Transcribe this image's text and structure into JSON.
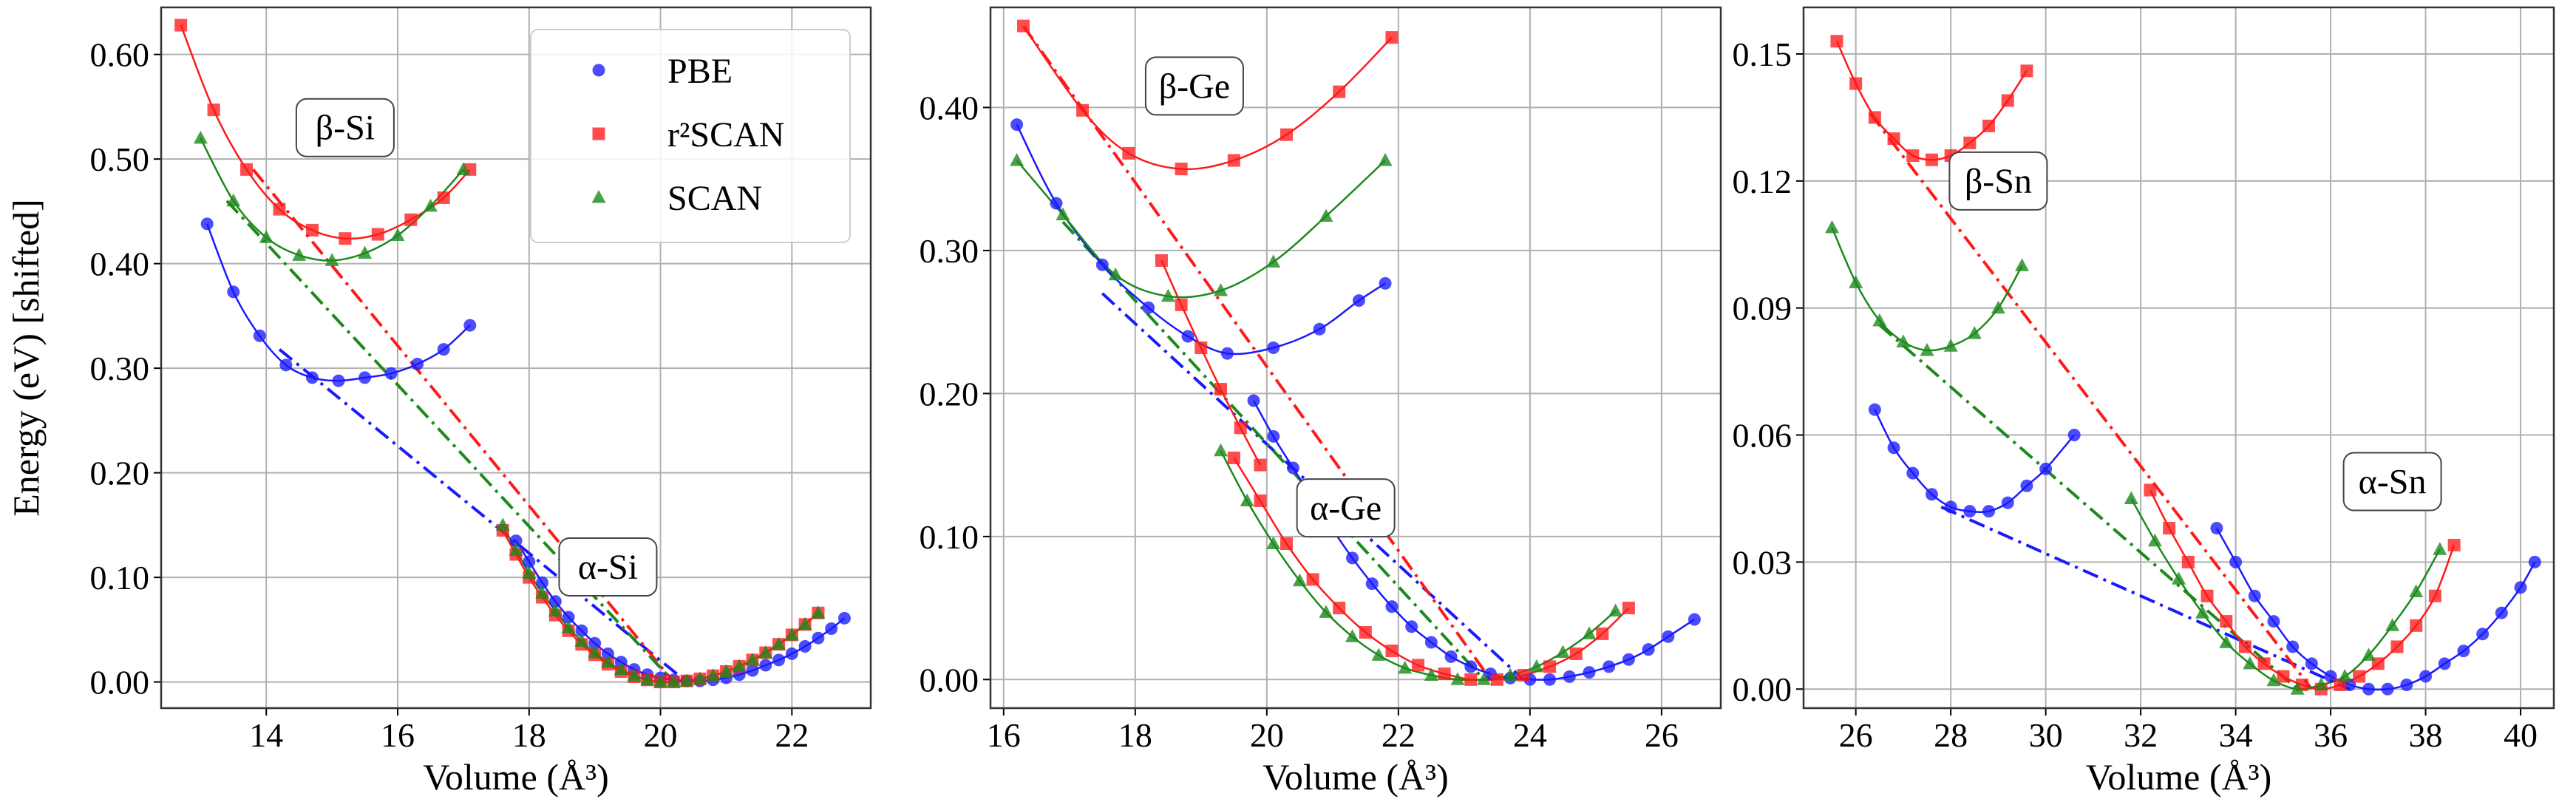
{
  "colors": {
    "PBE": "#1a1aff",
    "r2SCAN": "#ff1a1a",
    "SCAN": "#1a8a1a"
  },
  "legend": {
    "location": "upper-right of first panel",
    "entries": [
      {
        "key": "PBE",
        "label": "PBE",
        "marker": "circle"
      },
      {
        "key": "r2SCAN",
        "label": "r²SCAN",
        "marker": "square"
      },
      {
        "key": "SCAN",
        "label": "SCAN",
        "marker": "triangle"
      }
    ]
  },
  "chart_data": [
    {
      "type": "scatter",
      "panel": "Si",
      "xlabel": "Volume (Å³)",
      "ylabel": "Energy (eV) [shifted]",
      "xlim": [
        12.4,
        23.2
      ],
      "ylim": [
        -0.025,
        0.645
      ],
      "xticks": [
        14,
        16,
        18,
        20,
        22
      ],
      "xticklabels": [
        "14",
        "16",
        "18",
        "20",
        "22"
      ],
      "yticks": [
        0,
        0.1,
        0.2,
        0.3,
        0.4,
        0.5,
        0.6
      ],
      "yticklabels": [
        "0.00",
        "0.10",
        "0.20",
        "0.30",
        "0.40",
        "0.50",
        "0.60"
      ],
      "annotations": [
        {
          "text": "β-Si",
          "x": 15.2,
          "y": 0.53
        },
        {
          "text": "α-Si",
          "x": 19.2,
          "y": 0.11
        }
      ],
      "series": [
        {
          "name": "PBE",
          "phase": "α",
          "x": [
            17.8,
            18.0,
            18.2,
            18.4,
            18.6,
            18.8,
            19.0,
            19.2,
            19.4,
            19.6,
            19.8,
            20.0,
            20.2,
            20.4,
            20.6,
            20.8,
            21.0,
            21.2,
            21.4,
            21.6,
            21.8,
            22.0,
            22.2,
            22.4,
            22.6,
            22.8
          ],
          "y": [
            0.135,
            0.115,
            0.095,
            0.077,
            0.062,
            0.049,
            0.037,
            0.027,
            0.019,
            0.012,
            0.007,
            0.004,
            0.002,
            0.001,
            0.001,
            0.002,
            0.004,
            0.007,
            0.011,
            0.016,
            0.021,
            0.027,
            0.034,
            0.042,
            0.051,
            0.061
          ]
        },
        {
          "name": "PBE",
          "phase": "β",
          "x": [
            13.1,
            13.5,
            13.9,
            14.3,
            14.7,
            15.1,
            15.5,
            15.9,
            16.3,
            16.7,
            17.1
          ],
          "y": [
            0.438,
            0.373,
            0.331,
            0.303,
            0.291,
            0.288,
            0.291,
            0.295,
            0.304,
            0.318,
            0.341
          ]
        },
        {
          "name": "r2SCAN",
          "phase": "α",
          "x": [
            17.6,
            17.8,
            18.0,
            18.2,
            18.4,
            18.6,
            18.8,
            19.0,
            19.2,
            19.4,
            19.6,
            19.8,
            20.0,
            20.2,
            20.4,
            20.6,
            20.8,
            21.0,
            21.2,
            21.4,
            21.6,
            21.8,
            22.0,
            22.2,
            22.4
          ],
          "y": [
            0.145,
            0.122,
            0.1,
            0.081,
            0.064,
            0.049,
            0.036,
            0.026,
            0.017,
            0.01,
            0.005,
            0.002,
            0.0,
            0.0,
            0.001,
            0.003,
            0.006,
            0.01,
            0.015,
            0.021,
            0.028,
            0.036,
            0.045,
            0.055,
            0.066
          ]
        },
        {
          "name": "r2SCAN",
          "phase": "β",
          "x": [
            12.7,
            13.2,
            13.7,
            14.2,
            14.7,
            15.2,
            15.7,
            16.2,
            16.7,
            17.1
          ],
          "y": [
            0.628,
            0.547,
            0.49,
            0.452,
            0.432,
            0.424,
            0.428,
            0.442,
            0.463,
            0.49
          ]
        },
        {
          "name": "SCAN",
          "phase": "α",
          "x": [
            17.6,
            17.8,
            18.0,
            18.2,
            18.4,
            18.6,
            18.8,
            19.0,
            19.2,
            19.4,
            19.6,
            19.8,
            20.0,
            20.2,
            20.4,
            20.6,
            20.8,
            21.0,
            21.2,
            21.4,
            21.6,
            21.8,
            22.0,
            22.2,
            22.4
          ],
          "y": [
            0.15,
            0.126,
            0.104,
            0.085,
            0.068,
            0.052,
            0.039,
            0.028,
            0.019,
            0.012,
            0.006,
            0.002,
            0.0,
            0.0,
            0.001,
            0.003,
            0.006,
            0.01,
            0.015,
            0.021,
            0.028,
            0.036,
            0.045,
            0.055,
            0.066
          ]
        },
        {
          "name": "SCAN",
          "phase": "β",
          "x": [
            13.0,
            13.5,
            14.0,
            14.5,
            15.0,
            15.5,
            16.0,
            16.5,
            17.0
          ],
          "y": [
            0.52,
            0.46,
            0.425,
            0.408,
            0.403,
            0.41,
            0.427,
            0.455,
            0.49
          ]
        }
      ],
      "tangents": [
        {
          "name": "PBE",
          "x": [
            14.2,
            20.4
          ],
          "y": [
            0.318,
            0.0
          ]
        },
        {
          "name": "r2SCAN",
          "x": [
            13.8,
            20.2
          ],
          "y": [
            0.49,
            0.0
          ]
        },
        {
          "name": "SCAN",
          "x": [
            13.4,
            20.2
          ],
          "y": [
            0.46,
            0.0
          ]
        }
      ]
    },
    {
      "type": "scatter",
      "panel": "Ge",
      "xlabel": "Volume (Å³)",
      "ylabel": "",
      "xlim": [
        15.8,
        26.9
      ],
      "ylim": [
        -0.02,
        0.47
      ],
      "xticks": [
        16,
        18,
        20,
        22,
        24,
        26
      ],
      "xticklabels": [
        "16",
        "18",
        "20",
        "22",
        "24",
        "26"
      ],
      "yticks": [
        0,
        0.1,
        0.2,
        0.3,
        0.4
      ],
      "yticklabels": [
        "0.00",
        "0.10",
        "0.20",
        "0.30",
        "0.40"
      ],
      "annotations": [
        {
          "text": "β-Ge",
          "x": 18.9,
          "y": 0.415
        },
        {
          "text": "α-Ge",
          "x": 21.2,
          "y": 0.12
        }
      ],
      "series": [
        {
          "name": "PBE",
          "phase": "α",
          "x": [
            19.8,
            20.1,
            20.4,
            20.7,
            21.0,
            21.3,
            21.6,
            21.9,
            22.2,
            22.5,
            22.8,
            23.1,
            23.4,
            23.7,
            24.0,
            24.3,
            24.6,
            24.9,
            25.2,
            25.5,
            25.8,
            26.1,
            26.5
          ],
          "y": [
            0.195,
            0.17,
            0.148,
            0.126,
            0.105,
            0.085,
            0.067,
            0.051,
            0.037,
            0.026,
            0.016,
            0.009,
            0.004,
            0.001,
            0.0,
            0.0,
            0.002,
            0.005,
            0.009,
            0.014,
            0.021,
            0.03,
            0.042
          ]
        },
        {
          "name": "PBE",
          "phase": "β",
          "x": [
            16.2,
            16.8,
            17.5,
            18.2,
            18.8,
            19.4,
            20.1,
            20.8,
            21.4,
            21.8
          ],
          "y": [
            0.388,
            0.333,
            0.29,
            0.26,
            0.24,
            0.228,
            0.232,
            0.245,
            0.265,
            0.277
          ]
        },
        {
          "name": "r2SCAN",
          "phase": "α",
          "x": [
            19.5,
            19.9,
            20.3,
            20.7,
            21.1,
            21.5,
            21.9,
            22.3,
            22.7,
            23.1,
            23.5,
            23.9,
            24.3,
            24.7,
            25.1,
            25.5
          ],
          "y": [
            0.155,
            0.125,
            0.095,
            0.07,
            0.05,
            0.033,
            0.02,
            0.01,
            0.004,
            0.0,
            0.0,
            0.003,
            0.009,
            0.018,
            0.032,
            0.05
          ]
        },
        {
          "name": "r2SCAN",
          "phase": "β",
          "x": [
            16.3,
            17.2,
            17.9,
            18.7,
            19.5,
            20.3,
            21.1,
            21.9
          ],
          "y": [
            0.457,
            0.398,
            0.368,
            0.357,
            0.363,
            0.381,
            0.411,
            0.449
          ]
        },
        {
          "name": "r2SCAN",
          "phase": "β-compressed",
          "x": [
            18.4,
            18.7,
            19.0,
            19.3,
            19.6,
            19.9
          ],
          "y": [
            0.293,
            0.262,
            0.232,
            0.203,
            0.176,
            0.15
          ]
        },
        {
          "name": "SCAN",
          "phase": "α",
          "x": [
            19.3,
            19.7,
            20.1,
            20.5,
            20.9,
            21.3,
            21.7,
            22.1,
            22.5,
            22.9,
            23.3,
            23.7,
            24.1,
            24.5,
            24.9,
            25.3
          ],
          "y": [
            0.16,
            0.125,
            0.095,
            0.069,
            0.047,
            0.03,
            0.017,
            0.008,
            0.003,
            0.0,
            0.0,
            0.003,
            0.009,
            0.019,
            0.032,
            0.048
          ]
        },
        {
          "name": "SCAN",
          "phase": "β",
          "x": [
            16.2,
            16.9,
            17.7,
            18.5,
            19.3,
            20.1,
            20.9,
            21.8
          ],
          "y": [
            0.363,
            0.325,
            0.283,
            0.268,
            0.272,
            0.292,
            0.324,
            0.363
          ]
        }
      ],
      "tangents": [
        {
          "name": "PBE",
          "x": [
            17.5,
            23.9
          ],
          "y": [
            0.27,
            0.0
          ]
        },
        {
          "name": "r2SCAN",
          "x": [
            16.3,
            23.4
          ],
          "y": [
            0.457,
            0.0
          ]
        },
        {
          "name": "SCAN",
          "x": [
            16.9,
            23.3
          ],
          "y": [
            0.32,
            0.0
          ]
        }
      ]
    },
    {
      "type": "scatter",
      "panel": "Sn",
      "xlabel": "Volume (Å³)",
      "ylabel": "",
      "xlim": [
        24.9,
        40.7
      ],
      "ylim": [
        -0.0045,
        0.161
      ],
      "xticks": [
        26,
        28,
        30,
        32,
        34,
        36,
        38,
        40
      ],
      "xticklabels": [
        "26",
        "28",
        "30",
        "32",
        "34",
        "36",
        "38",
        "40"
      ],
      "yticks": [
        0,
        0.03,
        0.06,
        0.09,
        0.12,
        0.15
      ],
      "yticklabels": [
        "0.00",
        "0.03",
        "0.06",
        "0.09",
        "0.12",
        "0.15"
      ],
      "annotations": [
        {
          "text": "β-Sn",
          "x": 29.0,
          "y": 0.12
        },
        {
          "text": "α-Sn",
          "x": 37.3,
          "y": 0.049
        }
      ],
      "series": [
        {
          "name": "PBE",
          "phase": "α",
          "x": [
            33.6,
            34.0,
            34.4,
            34.8,
            35.2,
            35.6,
            36.0,
            36.4,
            36.8,
            37.2,
            37.6,
            38.0,
            38.4,
            38.8,
            39.2,
            39.6,
            40.0,
            40.3
          ],
          "y": [
            0.038,
            0.03,
            0.022,
            0.016,
            0.01,
            0.006,
            0.003,
            0.001,
            0.0,
            0.0,
            0.001,
            0.003,
            0.006,
            0.009,
            0.013,
            0.018,
            0.024,
            0.03
          ]
        },
        {
          "name": "PBE",
          "phase": "β",
          "x": [
            26.4,
            26.8,
            27.2,
            27.6,
            28.0,
            28.4,
            28.8,
            29.2,
            29.6,
            30.0,
            30.6
          ],
          "y": [
            0.066,
            0.057,
            0.051,
            0.046,
            0.043,
            0.042,
            0.042,
            0.044,
            0.048,
            0.052,
            0.06
          ]
        },
        {
          "name": "r2SCAN",
          "phase": "α",
          "x": [
            32.2,
            32.6,
            33.0,
            33.4,
            33.8,
            34.2,
            34.6,
            35.0,
            35.4,
            35.8,
            36.2,
            36.6,
            37.0,
            37.4,
            37.8,
            38.2,
            38.6
          ],
          "y": [
            0.047,
            0.038,
            0.03,
            0.022,
            0.016,
            0.01,
            0.006,
            0.003,
            0.001,
            0.0,
            0.001,
            0.003,
            0.006,
            0.01,
            0.015,
            0.022,
            0.034
          ]
        },
        {
          "name": "r2SCAN",
          "phase": "β",
          "x": [
            25.6,
            26.0,
            26.4,
            26.8,
            27.2,
            27.6,
            28.0,
            28.4,
            28.8,
            29.2,
            29.6
          ],
          "y": [
            0.153,
            0.143,
            0.135,
            0.13,
            0.126,
            0.125,
            0.126,
            0.129,
            0.133,
            0.139,
            0.146
          ]
        },
        {
          "name": "SCAN",
          "phase": "α",
          "x": [
            31.8,
            32.3,
            32.8,
            33.3,
            33.8,
            34.3,
            34.8,
            35.3,
            35.8,
            36.3,
            36.8,
            37.3,
            37.8,
            38.3
          ],
          "y": [
            0.045,
            0.035,
            0.026,
            0.018,
            0.011,
            0.006,
            0.002,
            0.0,
            0.001,
            0.003,
            0.008,
            0.015,
            0.023,
            0.033
          ]
        },
        {
          "name": "SCAN",
          "phase": "β",
          "x": [
            25.5,
            26.0,
            26.5,
            27.0,
            27.5,
            28.0,
            28.5,
            29.0,
            29.5
          ],
          "y": [
            0.109,
            0.096,
            0.087,
            0.082,
            0.08,
            0.081,
            0.084,
            0.09,
            0.1
          ]
        }
      ],
      "tangents": [
        {
          "name": "PBE",
          "x": [
            27.8,
            36.4
          ],
          "y": [
            0.043,
            0.0
          ]
        },
        {
          "name": "r2SCAN",
          "x": [
            26.3,
            35.6
          ],
          "y": [
            0.136,
            0.0
          ]
        },
        {
          "name": "SCAN",
          "x": [
            26.5,
            35.3
          ],
          "y": [
            0.086,
            0.0
          ]
        }
      ]
    }
  ]
}
